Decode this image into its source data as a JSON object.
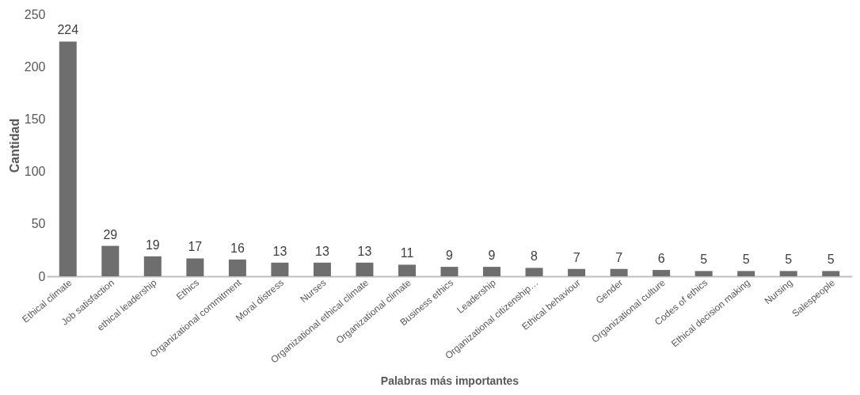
{
  "chart_data": {
    "type": "bar",
    "xlabel": "Palabras más importantes",
    "ylabel": "Cantidad",
    "categories": [
      "Ethical climate",
      "Job satisfaction",
      "ethical leadership",
      "Ethics",
      "Organizational commitment",
      "Moral distress",
      "Nurses",
      "Organizational ethical climate",
      "Organizational climate",
      "Business ethics",
      "Leadership",
      "Organizational citizenship…",
      "Ethical behaviour",
      "Gender",
      "Organizational culture",
      "Codes of ethics",
      "Ethical decision making",
      "Nursing",
      "Salespeople"
    ],
    "values": [
      224,
      29,
      19,
      17,
      16,
      13,
      13,
      13,
      11,
      9,
      9,
      8,
      7,
      7,
      6,
      5,
      5,
      5,
      5
    ],
    "color": "#6e6e6e",
    "ylim": [
      0,
      250
    ],
    "yticks": [
      0,
      50,
      100,
      150,
      200,
      250
    ],
    "grid": false,
    "data_labels": true
  }
}
